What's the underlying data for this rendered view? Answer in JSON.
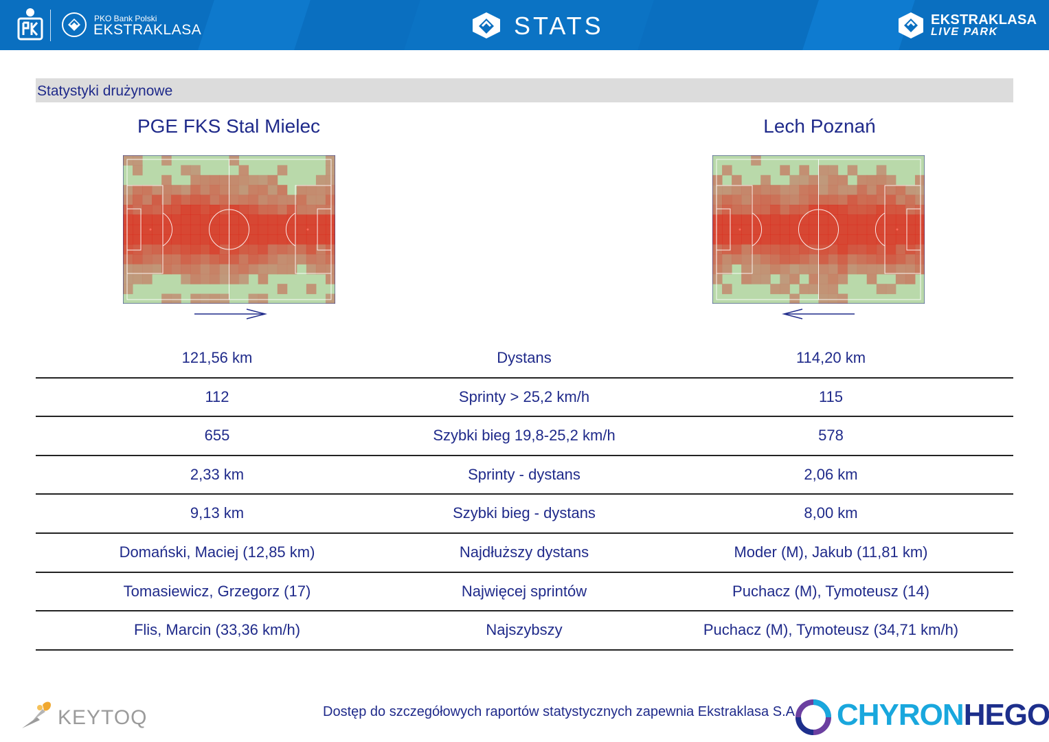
{
  "header": {
    "pko_small": "PKO Bank Polski",
    "pko_big": "EKSTRAKLASA",
    "stats_title": "STATS",
    "live_park_top": "EKSTRAKLASA",
    "live_park_bottom": "LIVE PARK",
    "icons": [
      "pko-logo-icon",
      "ekstraklasa-logo-icon",
      "stats-logo-icon",
      "live-park-logo-icon"
    ]
  },
  "section": {
    "title": "Statystyki drużynowe"
  },
  "teams": {
    "home": {
      "name": "PGE FKS Stal Mielec",
      "attack_direction": "right"
    },
    "away": {
      "name": "Lech Poznań",
      "attack_direction": "left"
    }
  },
  "stats_rows": [
    {
      "home": "121,56 km",
      "label": "Dystans",
      "away": "114,20 km"
    },
    {
      "home": "112",
      "label": "Sprinty > 25,2 km/h",
      "away": "115"
    },
    {
      "home": "655",
      "label": "Szybki bieg 19,8-25,2 km/h",
      "away": "578"
    },
    {
      "home": "2,33 km",
      "label": "Sprinty - dystans",
      "away": "2,06 km"
    },
    {
      "home": "9,13 km",
      "label": "Szybki bieg - dystans",
      "away": "8,00 km"
    },
    {
      "home": "Domański, Maciej (12,85 km)",
      "label": "Najdłuższy dystans",
      "away": "Moder (M), Jakub (11,81 km)"
    },
    {
      "home": "Tomasiewicz, Grzegorz (17)",
      "label": "Najwięcej sprintów",
      "away": "Puchacz (M), Tymoteusz (14)"
    },
    {
      "home": "Flis, Marcin (33,36 km/h)",
      "label": "Najszybszy",
      "away": "Puchacz (M), Tymoteusz (34,71 km/h)"
    }
  ],
  "footer": {
    "keytoq": "KEYTOQ",
    "note": "Dostęp do szczegółowych raportów statystycznych zapewnia Ekstraklasa S.A.",
    "chyron_a": "CHYRON",
    "chyron_b": "HEGO"
  },
  "colors": {
    "header_blue": "#0a6fc0",
    "text_navy": "#1f2a8a",
    "pitch_green": "#b8d7a8",
    "heat_red": "#d9381e"
  }
}
